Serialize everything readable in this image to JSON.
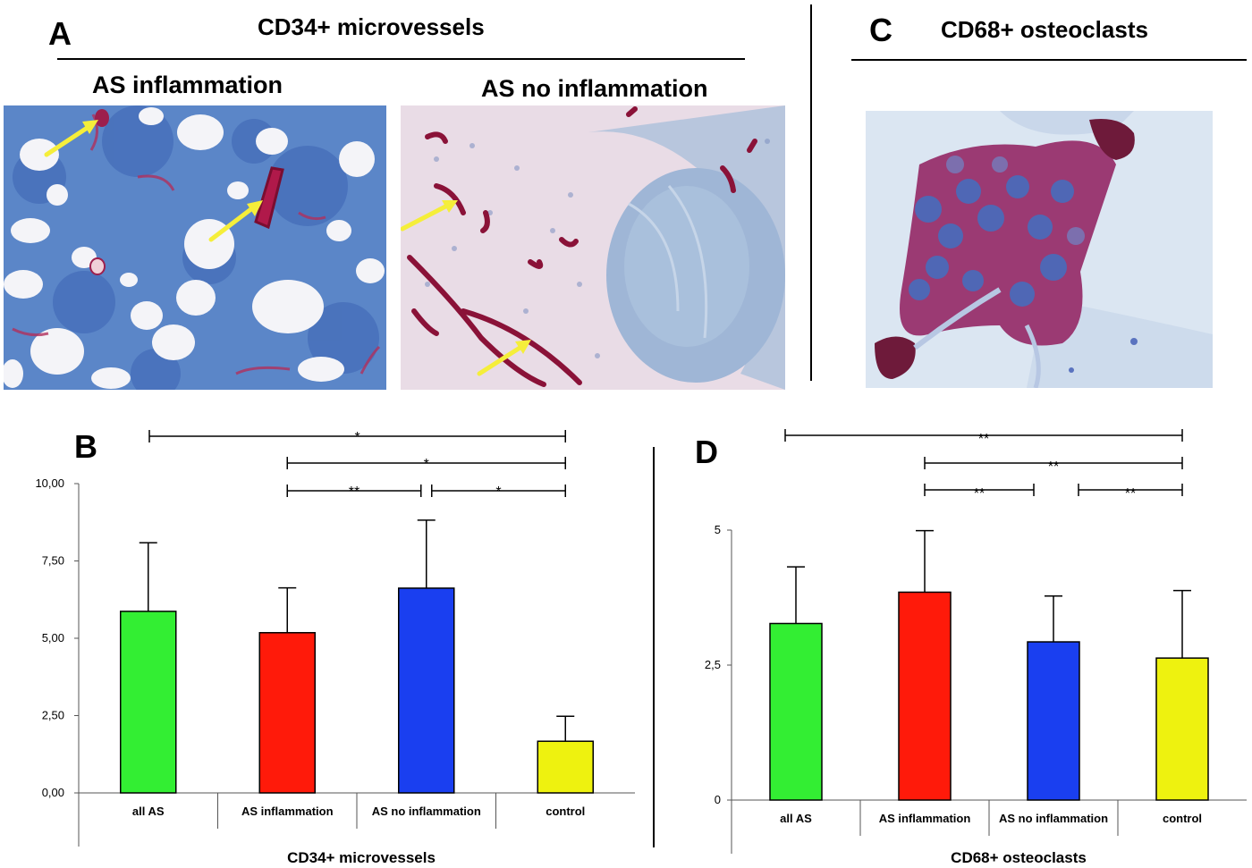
{
  "figure": {
    "panel_a": {
      "letter": "A",
      "title": "CD34+ microvessels",
      "left_image_label": "AS inflammation",
      "right_image_label": "AS no inflammation"
    },
    "panel_c": {
      "letter": "C",
      "title": "CD68+ osteoclasts"
    },
    "panel_b": {
      "letter": "B"
    },
    "panel_d": {
      "letter": "D"
    }
  },
  "chart_data": [
    {
      "id": "B",
      "type": "bar",
      "title": "",
      "xlabel": "CD34+  microvessels",
      "ylabel": "",
      "categories": [
        "all AS",
        "AS inflammation",
        "AS no inflammation",
        "control"
      ],
      "values": [
        5.87,
        5.18,
        6.62,
        1.67
      ],
      "errors": [
        2.22,
        1.45,
        2.2,
        0.81
      ],
      "colors": [
        "#33ee33",
        "#ff1a0a",
        "#1a3ff0",
        "#eef20f"
      ],
      "ylim": [
        0,
        10
      ],
      "yticks": [
        0,
        2.5,
        5,
        7.5,
        10
      ],
      "ytick_labels": [
        "0,00",
        "2,50",
        "5,00",
        "7,50",
        "10,00"
      ],
      "grid": false,
      "significance": [
        {
          "from": "all AS",
          "to": "control",
          "label": "*"
        },
        {
          "from": "AS inflammation",
          "to": "control",
          "label": "*"
        },
        {
          "from": "AS inflammation",
          "to": "AS no inflammation",
          "label": "**"
        },
        {
          "from": "AS no inflammation",
          "to": "control",
          "label": "*"
        }
      ]
    },
    {
      "id": "D",
      "type": "bar",
      "title": "",
      "xlabel": "CD68+ osteoclasts",
      "ylabel": "",
      "categories": [
        "all AS",
        "AS inflammation",
        "AS no inflammation",
        "control"
      ],
      "values": [
        3.27,
        3.85,
        2.93,
        2.63
      ],
      "errors": [
        1.05,
        1.14,
        0.85,
        1.25
      ],
      "colors": [
        "#33ee33",
        "#ff1a0a",
        "#1a3ff0",
        "#eef20f"
      ],
      "ylim": [
        0,
        5
      ],
      "yticks": [
        0,
        2.5,
        5
      ],
      "ytick_labels": [
        "0",
        "2,5",
        "5"
      ],
      "grid": false,
      "significance": [
        {
          "from": "all AS",
          "to": "control",
          "label": "**"
        },
        {
          "from": "AS inflammation",
          "to": "control",
          "label": "**"
        },
        {
          "from": "AS inflammation",
          "to": "AS no inflammation",
          "label": "**"
        },
        {
          "from": "AS no inflammation",
          "to": "control",
          "label": "**"
        }
      ]
    }
  ]
}
